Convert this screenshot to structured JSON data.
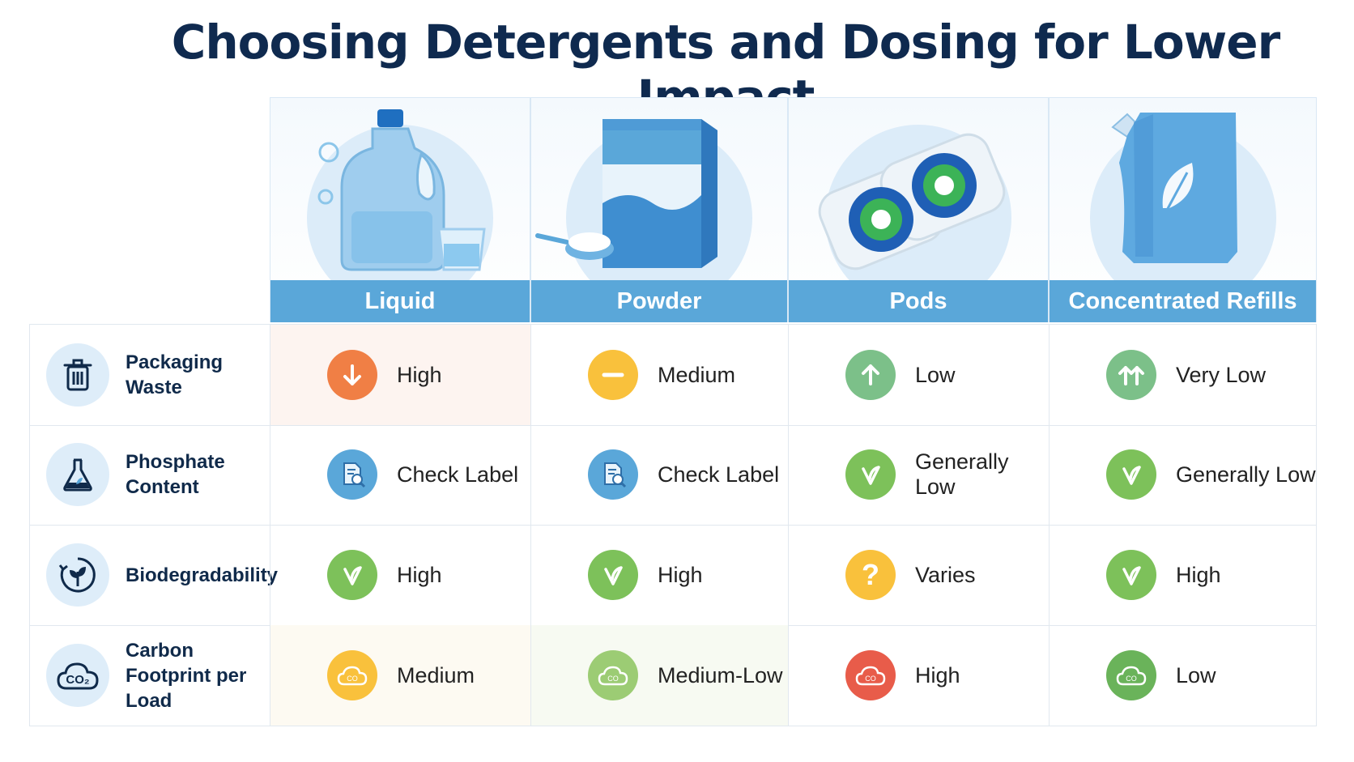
{
  "title": "Choosing Detergents and Dosing for Lower Impact",
  "columns": [
    {
      "label": "Liquid",
      "image": "liquid-detergent-jug"
    },
    {
      "label": "Powder",
      "image": "powder-detergent-box"
    },
    {
      "label": "Pods",
      "image": "detergent-pods"
    },
    {
      "label": "Concentrated Refills",
      "image": "refill-pouch"
    }
  ],
  "rows": [
    {
      "label": "Packaging Waste",
      "icon": "trash-icon",
      "cells": [
        {
          "value": "High",
          "icon": "arrow-down-icon",
          "color": "#f07f45"
        },
        {
          "value": "Medium",
          "icon": "minus-icon",
          "color": "#f9c13c"
        },
        {
          "value": "Low",
          "icon": "arrow-up-icon",
          "color": "#7cc089"
        },
        {
          "value": "Very Low",
          "icon": "double-arrow-up-icon",
          "color": "#7cc089"
        }
      ]
    },
    {
      "label": "Phosphate Content",
      "icon": "flask-icon",
      "cells": [
        {
          "value": "Check Label",
          "icon": "document-search-icon",
          "color": "#5aa7d9"
        },
        {
          "value": "Check Label",
          "icon": "document-search-icon",
          "color": "#5aa7d9"
        },
        {
          "value": "Generally Low",
          "icon": "leaf-check-icon",
          "color": "#7dc15a"
        },
        {
          "value": "Generally Low",
          "icon": "leaf-check-icon",
          "color": "#7dc15a"
        }
      ]
    },
    {
      "label": "Biodegradability",
      "icon": "recycle-leaf-icon",
      "cells": [
        {
          "value": "High",
          "icon": "leaf-check-icon",
          "color": "#7dc15a"
        },
        {
          "value": "High",
          "icon": "leaf-check-icon",
          "color": "#7dc15a"
        },
        {
          "value": "Varies",
          "icon": "question-icon",
          "color": "#f9c13c"
        },
        {
          "value": "High",
          "icon": "leaf-check-icon",
          "color": "#7dc15a"
        }
      ]
    },
    {
      "label": "Carbon Footprint per Load",
      "icon": "co2-cloud-icon",
      "cells": [
        {
          "value": "Medium",
          "icon": "co2-cloud-icon",
          "color": "#f9c13c"
        },
        {
          "value": "Medium-Low",
          "icon": "co2-cloud-icon",
          "color": "#9ccc74"
        },
        {
          "value": "High",
          "icon": "co2-cloud-icon",
          "color": "#e85c4a"
        },
        {
          "value": "Low",
          "icon": "co2-cloud-icon",
          "color": "#6ab35a"
        }
      ]
    }
  ],
  "colors": {
    "title": "#0f2a4f",
    "header_band": "#5aa7d9",
    "label_text": "#102a4a"
  }
}
